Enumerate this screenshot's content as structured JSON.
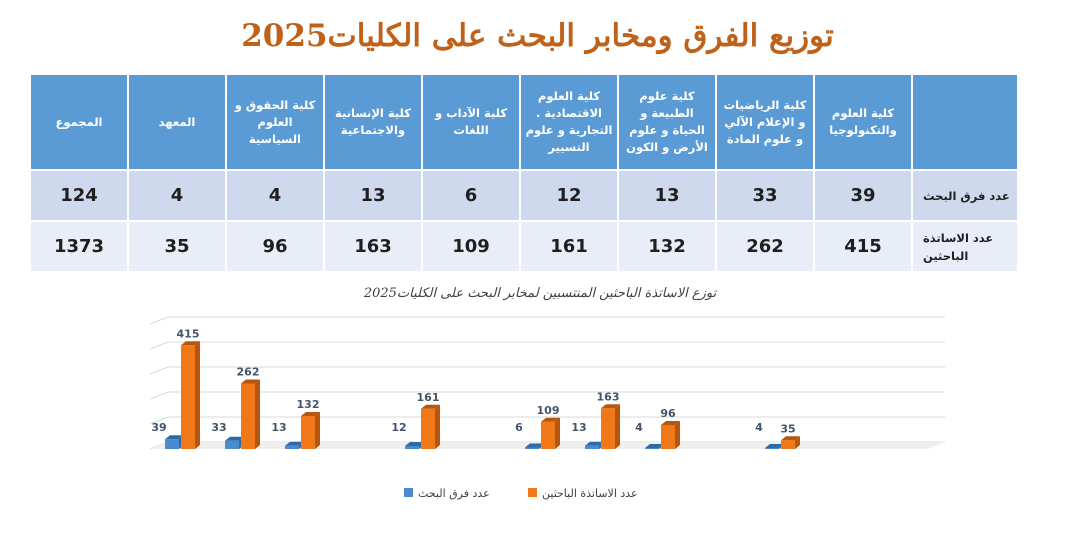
{
  "title": "توزيع الفرق ومخابر البحث على الكليات2025",
  "table": {
    "columns": [
      "كلية العلوم والتكنولوجيا",
      "كلية الرياضيات و الإعلام الآلي و علوم المادة",
      "كلية علوم الطبيعة و الحياة و علوم الأرض و الكون",
      "كلية العلوم الاقتصادية . التجارية و علوم التسيير",
      "كلية الآداب و اللغات",
      "كلية الإنسانية والاجتماعية",
      "كلية الحقوق و العلوم السياسية",
      "المعهد",
      "المجموع"
    ],
    "rows": [
      {
        "label": "عدد فرق البحث",
        "values": [
          "39",
          "33",
          "13",
          "12",
          "6",
          "13",
          "4",
          "4",
          "124"
        ]
      },
      {
        "label": "عدد الاساتذة الباحثين",
        "values": [
          "415",
          "262",
          "132",
          "161",
          "109",
          "163",
          "96",
          "35",
          "1373"
        ]
      }
    ]
  },
  "chart_data": {
    "type": "bar",
    "title": "توزع الاساتذة الباحثين المنتسبين لمخابر البحث على الكليات2025",
    "xlabel": "",
    "ylabel": "",
    "ylim": [
      0,
      500
    ],
    "grid": true,
    "legend": "bottom",
    "pair_layout": "each group sits in its own slot; slot order matches slot_groups (some slots empty)",
    "slot_groups": [
      [
        0,
        1
      ],
      [],
      [
        2
      ],
      [],
      [
        3
      ],
      [],
      [
        4,
        5
      ],
      [],
      [
        6
      ],
      [],
      [
        7
      ]
    ],
    "series": [
      {
        "name": "عدد فرق البحث",
        "color": "#4a8bd0",
        "values": [
          39,
          33,
          13,
          12,
          6,
          13,
          4,
          4
        ]
      },
      {
        "name": "عدد الاساتذة الباحثين",
        "color": "#f07819",
        "values": [
          415,
          262,
          132,
          161,
          109,
          163,
          96,
          35
        ]
      }
    ],
    "data_labels": true
  }
}
